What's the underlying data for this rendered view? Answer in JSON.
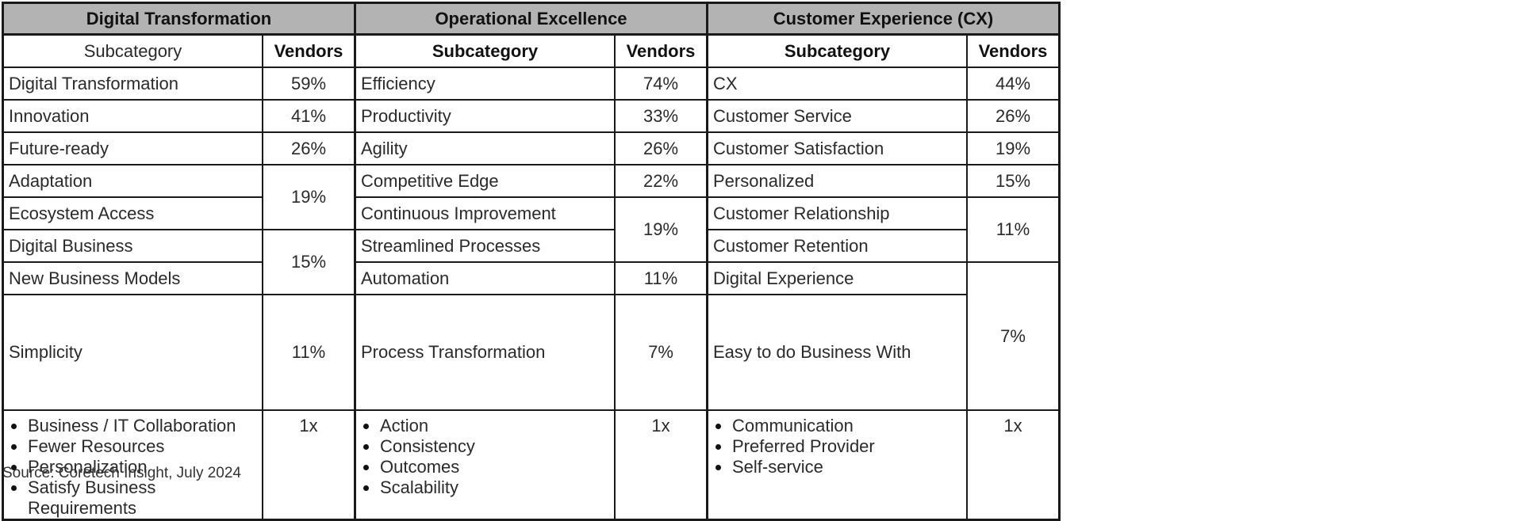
{
  "groups": [
    {
      "title": "Digital Transformation",
      "subcategory_header": "Subcategory",
      "vendors_header": "Vendors",
      "rows": [
        {
          "name": "Digital Transformation",
          "pct": "59%"
        },
        {
          "name": "Innovation",
          "pct": "41%"
        },
        {
          "name": "Future-ready",
          "pct": "26%"
        },
        {
          "name": "Adaptation",
          "pct": "19%"
        },
        {
          "name": "Ecosystem Access",
          "pct": ""
        },
        {
          "name": "Digital Business",
          "pct": "15%"
        },
        {
          "name": "New Business Models",
          "pct": ""
        },
        {
          "name": "Simplicity",
          "pct": "11%"
        }
      ],
      "bullets": [
        "Business / IT Collaboration",
        "Fewer Resources",
        "Personalization",
        "Satisfy Business Requirements"
      ],
      "bullet_pct": "1x"
    },
    {
      "title": "Operational Excellence",
      "subcategory_header": "Subcategory",
      "vendors_header": "Vendors",
      "rows": [
        {
          "name": "Efficiency",
          "pct": "74%"
        },
        {
          "name": "Productivity",
          "pct": "33%"
        },
        {
          "name": "Agility",
          "pct": "26%"
        },
        {
          "name": "Competitive Edge",
          "pct": "22%"
        },
        {
          "name": "Continuous Improvement",
          "pct": "19%"
        },
        {
          "name": "Streamlined Processes",
          "pct": ""
        },
        {
          "name": "Automation",
          "pct": "11%"
        },
        {
          "name": "Process Transformation",
          "pct": "7%"
        }
      ],
      "bullets": [
        "Action",
        "Consistency",
        "Outcomes",
        "Scalability"
      ],
      "bullet_pct": "1x"
    },
    {
      "title": "Customer Experience (CX)",
      "subcategory_header": "Subcategory",
      "vendors_header": "Vendors",
      "rows": [
        {
          "name": "CX",
          "pct": "44%"
        },
        {
          "name": "Customer Service",
          "pct": "26%"
        },
        {
          "name": "Customer Satisfaction",
          "pct": "19%"
        },
        {
          "name": "Personalized",
          "pct": "15%"
        },
        {
          "name": "Customer Relationship",
          "pct": "11%"
        },
        {
          "name": "Customer Retention",
          "pct": ""
        },
        {
          "name": "Digital Experience",
          "pct": "7%"
        },
        {
          "name": "Easy to do Business With",
          "pct": ""
        }
      ],
      "bullets": [
        "Communication",
        "Preferred Provider",
        "Self-service"
      ],
      "bullet_pct": "1x"
    }
  ],
  "source": "Source: Coretech Insight, July 2024"
}
